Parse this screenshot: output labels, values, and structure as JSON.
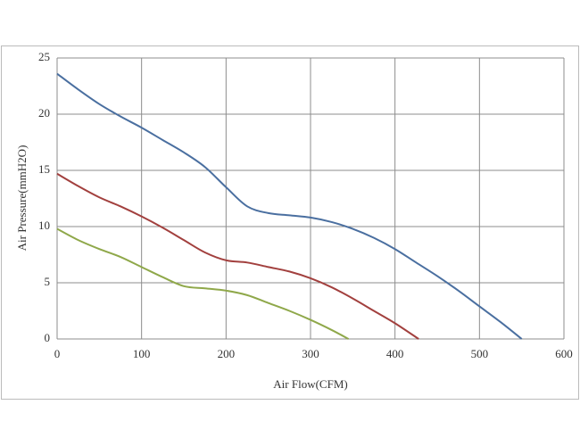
{
  "chart_data": {
    "type": "line",
    "xlabel": "Air Flow(CFM)",
    "ylabel": "Air Pressure(mmH2O)",
    "xlim": [
      0,
      600
    ],
    "xticks": [
      0,
      100,
      200,
      300,
      400,
      500,
      600
    ],
    "ylim": [
      0,
      25
    ],
    "yticks": [
      0,
      5,
      10,
      15,
      20,
      25
    ],
    "grid": true,
    "series": [
      {
        "color": "#4a6fa0",
        "x": [
          0,
          25,
          50,
          75,
          100,
          125,
          150,
          175,
          200,
          225,
          250,
          275,
          300,
          325,
          350,
          375,
          400,
          425,
          450,
          475,
          500,
          525,
          550
        ],
        "values": [
          23.6,
          22.2,
          20.9,
          19.8,
          18.8,
          17.7,
          16.6,
          15.3,
          13.5,
          11.8,
          11.2,
          11.0,
          10.8,
          10.4,
          9.8,
          9.0,
          8.0,
          6.8,
          5.6,
          4.3,
          2.9,
          1.5,
          0
        ]
      },
      {
        "color": "#a2403e",
        "x": [
          0,
          25,
          50,
          75,
          100,
          125,
          150,
          175,
          200,
          225,
          250,
          275,
          300,
          325,
          350,
          375,
          400,
          428
        ],
        "values": [
          14.7,
          13.6,
          12.6,
          11.8,
          10.9,
          9.9,
          8.8,
          7.7,
          7.0,
          6.8,
          6.4,
          6.0,
          5.4,
          4.6,
          3.6,
          2.5,
          1.4,
          0
        ]
      },
      {
        "color": "#8fa84a",
        "x": [
          0,
          25,
          50,
          75,
          100,
          125,
          150,
          175,
          200,
          225,
          250,
          275,
          300,
          325,
          345
        ],
        "values": [
          9.8,
          8.8,
          8.0,
          7.3,
          6.4,
          5.5,
          4.7,
          4.5,
          4.3,
          3.9,
          3.2,
          2.5,
          1.7,
          0.8,
          0
        ]
      }
    ]
  }
}
